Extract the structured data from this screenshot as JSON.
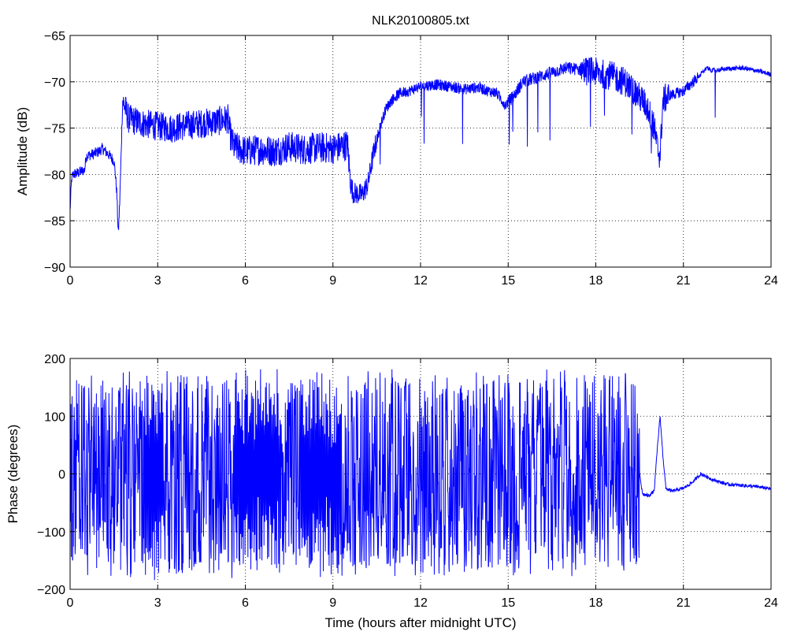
{
  "figure": {
    "title": "NLK20100805.txt"
  },
  "chart_data": [
    {
      "type": "line",
      "title": "NLK20100805.txt",
      "xlabel": "",
      "ylabel": "Amplitude (dB)",
      "xlim": [
        0,
        24
      ],
      "ylim": [
        -90,
        -65
      ],
      "xticks": [
        0,
        3,
        6,
        9,
        12,
        15,
        18,
        21,
        24
      ],
      "yticks": [
        -90,
        -85,
        -80,
        -75,
        -70,
        -65
      ],
      "xtick_labels": [
        "0",
        "3",
        "6",
        "9",
        "12",
        "15",
        "18",
        "21",
        "24"
      ],
      "ytick_labels": [
        "−90",
        "−85",
        "−80",
        "−75",
        "−70",
        "−65"
      ],
      "grid": true,
      "color": "#0000ff",
      "series": [
        {
          "x": [
            0,
            0.05,
            0.1,
            0.3,
            0.5,
            0.55,
            0.8,
            1.0,
            1.1,
            1.3,
            1.5,
            1.55,
            1.6,
            1.65,
            1.7,
            1.8,
            2.0,
            2.5,
            3.0,
            3.5,
            4.0,
            4.5,
            5.0,
            5.4,
            5.5,
            5.6,
            6.0,
            6.5,
            7.0,
            7.5,
            8.0,
            8.5,
            9.0,
            9.5,
            9.6,
            9.7,
            10.0,
            10.2,
            10.4,
            10.6,
            10.8,
            11.0,
            11.3,
            11.6,
            12.0,
            12.5,
            13.0,
            13.5,
            14.0,
            14.3,
            14.6,
            14.9,
            15.2,
            15.5,
            16.0,
            16.5,
            17.0,
            17.5,
            18.0,
            18.5,
            19.0,
            19.3,
            19.6,
            19.8,
            20.0,
            20.1,
            20.2,
            20.3,
            20.5,
            21.0,
            21.5,
            21.8,
            22.0,
            22.5,
            23.0,
            23.5,
            24.0
          ],
          "y": [
            -84,
            -80.5,
            -80,
            -79.8,
            -79.5,
            -78,
            -77.8,
            -77.5,
            -77.2,
            -77.8,
            -78.5,
            -80,
            -82,
            -86.5,
            -83,
            -72,
            -74,
            -74.5,
            -74.8,
            -75,
            -74.7,
            -74.5,
            -74.3,
            -74,
            -76,
            -77,
            -77.5,
            -77.3,
            -77.5,
            -77,
            -77.3,
            -77.1,
            -77.2,
            -76.8,
            -81,
            -82,
            -82.2,
            -81,
            -77.5,
            -75,
            -73,
            -72,
            -71.2,
            -71,
            -70.5,
            -70.3,
            -70.5,
            -70.8,
            -70.6,
            -71,
            -71.2,
            -72.5,
            -71.5,
            -70,
            -69.5,
            -69,
            -68.5,
            -68.7,
            -69,
            -69.3,
            -70,
            -71,
            -72,
            -73,
            -75,
            -77,
            -78,
            -72,
            -71.5,
            -71,
            -69.5,
            -68.5,
            -68.8,
            -68.6,
            -68.5,
            -68.8,
            -69.2
          ]
        }
      ]
    },
    {
      "type": "line",
      "title": "",
      "xlabel": "Time (hours after midnight UTC)",
      "ylabel": "Phase (degrees)",
      "xlim": [
        0,
        24
      ],
      "ylim": [
        -200,
        200
      ],
      "xticks": [
        0,
        3,
        6,
        9,
        12,
        15,
        18,
        21,
        24
      ],
      "yticks": [
        -200,
        -100,
        0,
        100,
        200
      ],
      "xtick_labels": [
        "0",
        "3",
        "6",
        "9",
        "12",
        "15",
        "18",
        "21",
        "24"
      ],
      "ytick_labels": [
        "−200",
        "−100",
        "0",
        "100",
        "200"
      ],
      "grid": true,
      "color": "#0000ff",
      "series": [
        {
          "x": [
            0,
            0.5,
            1.0,
            1.5,
            2.0,
            2.5,
            3.0,
            3.5,
            4.0,
            4.5,
            5.0,
            5.5,
            6.0,
            6.5,
            7.0,
            7.5,
            8.0,
            8.5,
            9.0,
            9.5,
            10.0,
            11.0,
            12.0,
            13.0,
            14.0,
            15.0,
            16.0,
            17.0,
            18.0,
            19.0,
            19.5,
            19.6,
            19.8,
            20.0,
            20.1,
            20.2,
            20.3,
            20.4,
            20.6,
            21.0,
            21.3,
            21.6,
            22.0,
            22.5,
            23.0,
            23.5,
            24.0
          ],
          "y": [
            0,
            0,
            0,
            0,
            0,
            0,
            0,
            0,
            0,
            0,
            0,
            0,
            0,
            0,
            0,
            0,
            0,
            0,
            0,
            0,
            0,
            0,
            0,
            0,
            0,
            0,
            0,
            0,
            0,
            0,
            0,
            -35,
            -38,
            -30,
            40,
            100,
            30,
            -25,
            -30,
            -25,
            -15,
            0,
            -10,
            -18,
            -20,
            -22,
            -26
          ],
          "wrapped_until_hour": 19.5,
          "wrap_range": [
            -175,
            175
          ]
        }
      ]
    }
  ]
}
